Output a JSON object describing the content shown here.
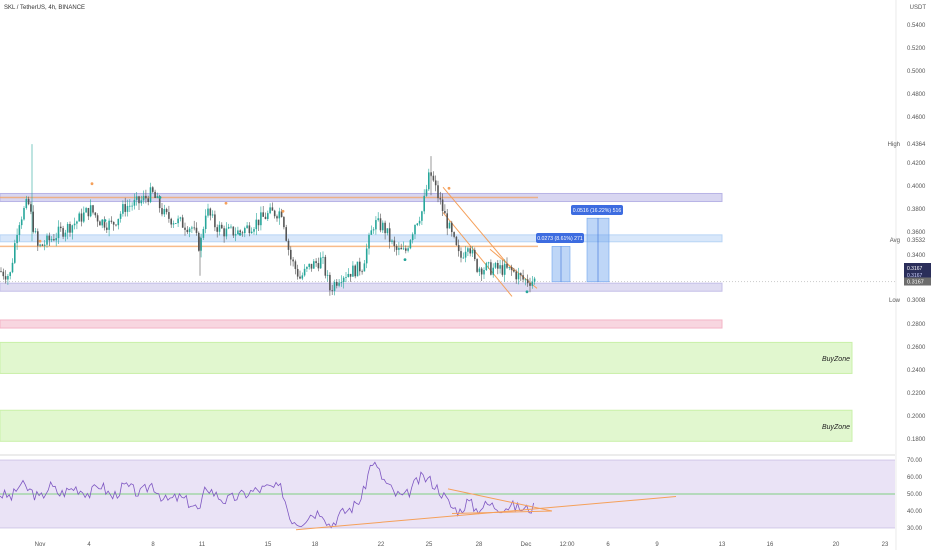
{
  "header": {
    "title": "SKL / TetherUS, 4h, BINANCE"
  },
  "price_axis": {
    "unit": "USDT",
    "ticks": [
      "0.5400",
      "0.5200",
      "0.5000",
      "0.4800",
      "0.4600",
      "0.4364",
      "0.4200",
      "0.4000",
      "0.3800",
      "0.3600",
      "0.3532",
      "0.3400",
      "0.3167",
      "0.3008",
      "0.2800",
      "0.2600",
      "0.2400",
      "0.2200",
      "0.2000",
      "0.1800"
    ],
    "tick_values": [
      0.54,
      0.52,
      0.5,
      0.48,
      0.46,
      0.4364,
      0.42,
      0.4,
      0.38,
      0.36,
      0.3532,
      0.34,
      0.3167,
      0.3008,
      0.28,
      0.26,
      0.24,
      0.22,
      0.2,
      0.18
    ],
    "side_labels": {
      "high": "High",
      "avg": "Avg",
      "low": "Low"
    },
    "last_price": "0.3167",
    "last_price_box": [
      "0.3167",
      "0.3167"
    ],
    "colors": {
      "price_tag": "#2a2e5a",
      "last_tag": "#6d6d6d"
    }
  },
  "rsi_axis": {
    "ticks": [
      "70.00",
      "60.00",
      "50.00",
      "40.00",
      "30.00"
    ],
    "tick_values": [
      70,
      60,
      50,
      40,
      30
    ]
  },
  "time_axis": {
    "labels": [
      "Nov",
      "4",
      "8",
      "11",
      "15",
      "18",
      "22",
      "25",
      "28",
      "Dec",
      "12:00",
      "6",
      "9",
      "13",
      "16",
      "20",
      "23"
    ]
  },
  "annotations": {
    "measure_1": "0.0273 (8.61%) 271",
    "measure_2": "0.0516 (16.22%) 516",
    "buy_zone_1": "BuyZone",
    "buy_zone_2": "BuyZone"
  },
  "chart_data": {
    "type": "candlestick",
    "title": "SKL / TetherUS, 4h, BINANCE",
    "ylabel": "USDT",
    "ylim": [
      0.17,
      0.555
    ],
    "zones": [
      {
        "label": "resistance",
        "low": 0.3865,
        "high": 0.3935,
        "color": "#b8b4e6"
      },
      {
        "label": "mid",
        "low": 0.3515,
        "high": 0.3575,
        "color": "#b8d4f5"
      },
      {
        "label": "support",
        "low": 0.3085,
        "high": 0.3155,
        "color": "#c4bfe8"
      },
      {
        "label": "red",
        "low": 0.2765,
        "high": 0.2835,
        "color": "#f3b4c6"
      },
      {
        "label": "BuyZone",
        "low": 0.237,
        "high": 0.264,
        "color": "#c9f0a8"
      },
      {
        "label": "BuyZone",
        "low": 0.178,
        "high": 0.205,
        "color": "#c9f0a8"
      }
    ],
    "rsi": {
      "ylim": [
        28,
        72
      ],
      "levels": [
        70,
        50,
        30
      ]
    },
    "colors": {
      "up": "#26a69a",
      "down": "#555555",
      "rsi_line": "#7e57c2",
      "trend": "#f5a05a",
      "measure": "#6fa4ee"
    }
  }
}
